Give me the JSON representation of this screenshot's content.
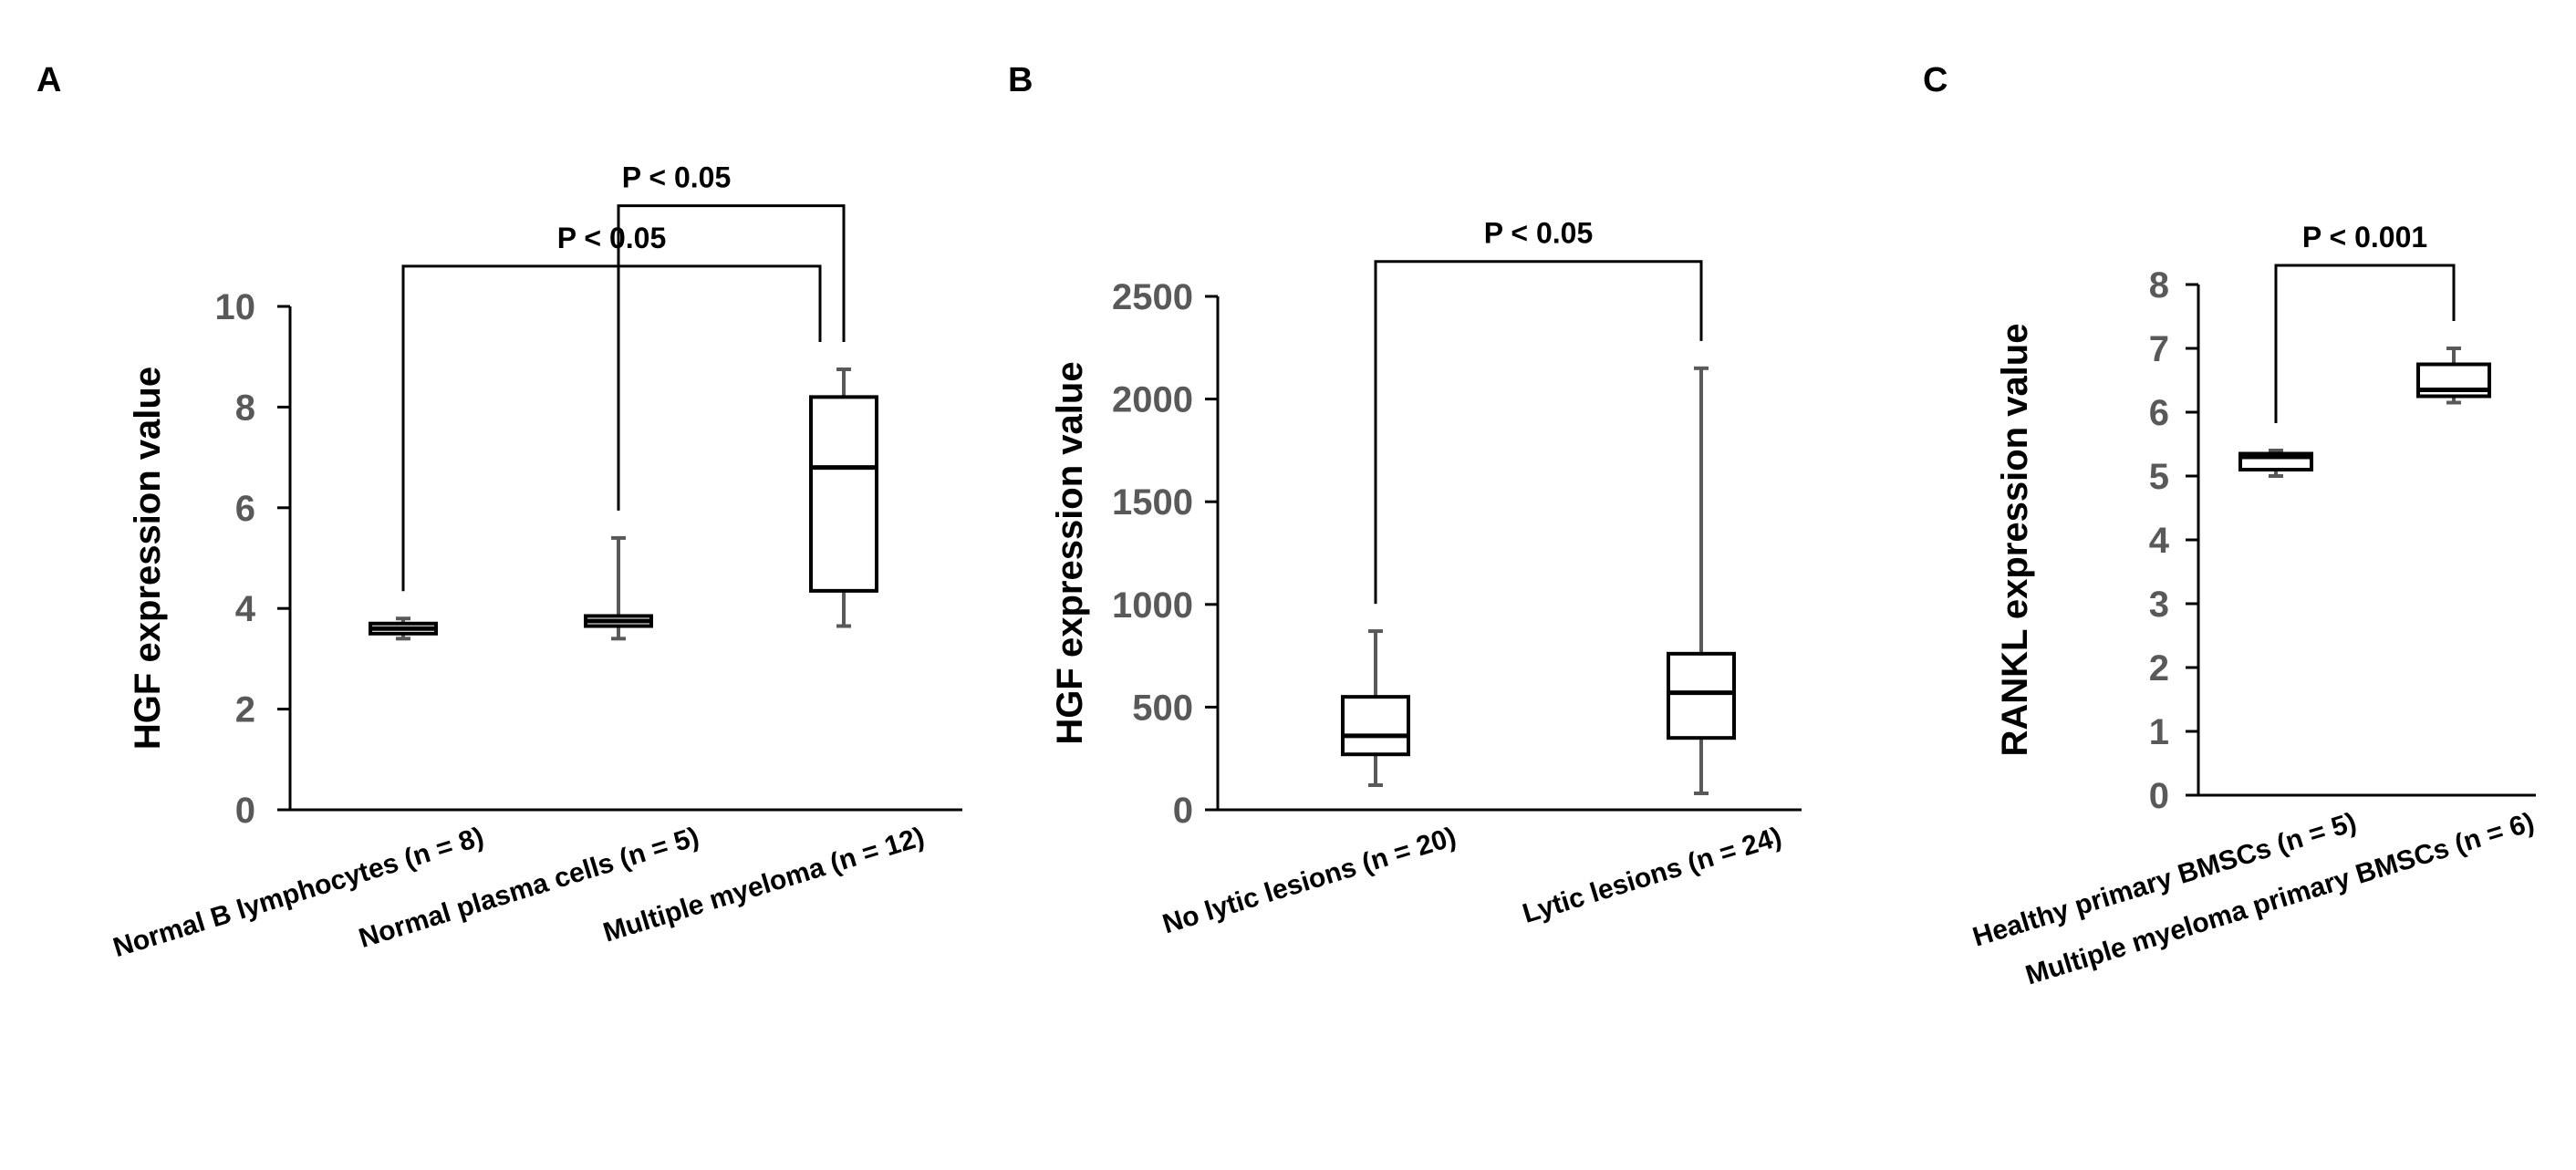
{
  "chart_data": [
    {
      "type": "box",
      "panel": "A",
      "ylabel": "HGF expression value",
      "ylim": [
        0,
        10
      ],
      "yticks": [
        0,
        2,
        4,
        6,
        8,
        10
      ],
      "categories": [
        "Normal B lymphocytes  (n = 8)",
        "Normal plasma cells (n = 5)",
        "Multiple myeloma  (n = 12)"
      ],
      "boxes": [
        {
          "min": 3.4,
          "q1": 3.5,
          "median": 3.6,
          "q3": 3.7,
          "max": 3.8
        },
        {
          "min": 3.4,
          "q1": 3.65,
          "median": 3.75,
          "q3": 3.85,
          "max": 5.4
        },
        {
          "min": 3.65,
          "q1": 4.35,
          "median": 6.8,
          "q3": 8.2,
          "max": 8.75
        }
      ],
      "comparisons": [
        {
          "from": 0,
          "to": 2,
          "label": "P < 0.05",
          "y": 10.8
        },
        {
          "from": 1,
          "to": 2,
          "label": "P < 0.05",
          "y": 12.0
        }
      ]
    },
    {
      "type": "box",
      "panel": "B",
      "ylabel": "HGF expression value",
      "ylim": [
        0,
        2500
      ],
      "yticks": [
        0,
        500,
        1000,
        1500,
        2000,
        2500
      ],
      "categories": [
        "No lytic lesions (n = 20)",
        "Lytic lesions (n = 24)"
      ],
      "boxes": [
        {
          "min": 120,
          "q1": 270,
          "median": 360,
          "q3": 550,
          "max": 870
        },
        {
          "min": 80,
          "q1": 350,
          "median": 570,
          "q3": 760,
          "max": 2150
        }
      ],
      "comparisons": [
        {
          "from": 0,
          "to": 1,
          "label": "P < 0.05",
          "y": 2670
        }
      ]
    },
    {
      "type": "box",
      "panel": "C",
      "ylabel": "RANKL expression value",
      "ylim": [
        0,
        8
      ],
      "yticks": [
        0,
        1,
        2,
        3,
        4,
        5,
        6,
        7,
        8
      ],
      "categories": [
        "Healthy primary BMSCs  (n = 5)",
        "Multiple myeloma primary BMSCs (n = 6)"
      ],
      "boxes": [
        {
          "min": 5.0,
          "q1": 5.1,
          "median": 5.3,
          "q3": 5.35,
          "max": 5.4
        },
        {
          "min": 6.15,
          "q1": 6.25,
          "median": 6.35,
          "q3": 6.75,
          "max": 7.0
        }
      ],
      "comparisons": [
        {
          "from": 0,
          "to": 1,
          "label": "P < 0.001",
          "y": 8.3
        }
      ]
    }
  ]
}
